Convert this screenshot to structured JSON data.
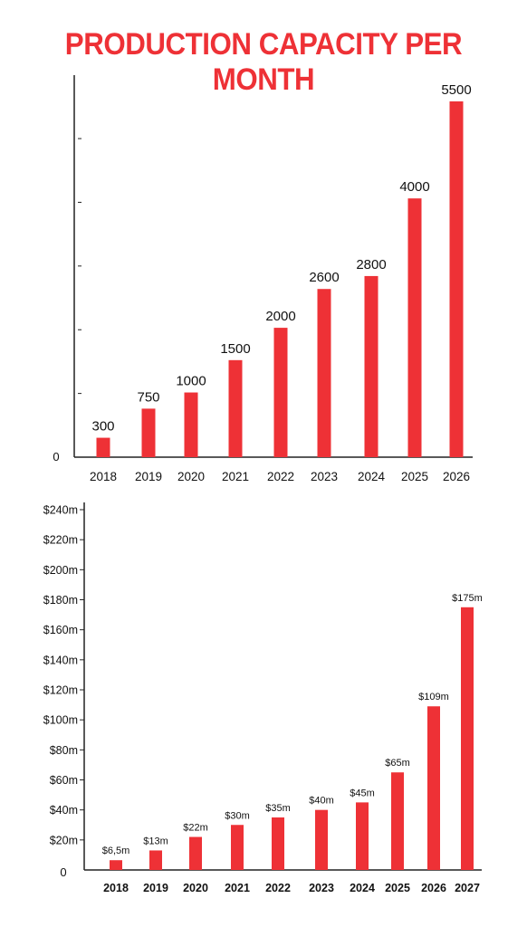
{
  "title": "PRODUCTION CAPACITY PER MONTH",
  "colors": {
    "bar": "#ee3136",
    "title": "#ee3136",
    "axis": "#222222",
    "text": "#111111"
  },
  "chart_data": [
    {
      "type": "bar",
      "categories": [
        "2018",
        "2019",
        "2020",
        "2021",
        "2022",
        "2023",
        "2024",
        "2025",
        "2026"
      ],
      "values": [
        300,
        750,
        1000,
        1500,
        2000,
        2600,
        2800,
        4000,
        5500
      ],
      "data_labels": [
        "300",
        "750",
        "1000",
        "1500",
        "2000",
        "2600",
        "2800",
        "4000",
        "5500"
      ],
      "y_zero_label": "0",
      "ylim": [
        0,
        6000
      ],
      "grid": false
    },
    {
      "type": "bar",
      "categories": [
        "2018",
        "2019",
        "2020",
        "2021",
        "2022",
        "2023",
        "2024",
        "2025",
        "2026",
        "2027"
      ],
      "values": [
        6.5,
        13,
        22,
        30,
        35,
        40,
        45,
        65,
        109,
        175
      ],
      "data_labels": [
        "$6,5m",
        "$13m",
        "$22m",
        "$30m",
        "$35m",
        "$40m",
        "$45m",
        "$65m",
        "$109m",
        "$175m"
      ],
      "y_tick_labels": [
        "$20m",
        "$40m",
        "$60m",
        "$80m",
        "$100m",
        "$120m",
        "$140m",
        "$160m",
        "$180m",
        "$200m",
        "$220m",
        "$240m"
      ],
      "y_zero_label": "0",
      "ylim": [
        0,
        240
      ],
      "grid": false
    }
  ]
}
